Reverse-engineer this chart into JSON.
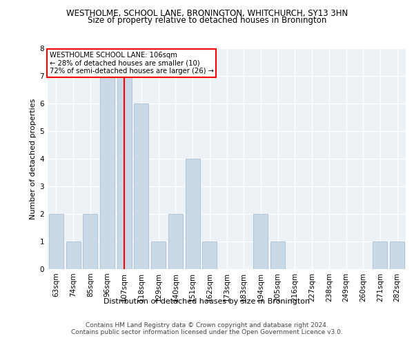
{
  "title1": "WESTHOLME, SCHOOL LANE, BRONINGTON, WHITCHURCH, SY13 3HN",
  "title2": "Size of property relative to detached houses in Bronington",
  "xlabel": "Distribution of detached houses by size in Bronington",
  "ylabel": "Number of detached properties",
  "categories": [
    "63sqm",
    "74sqm",
    "85sqm",
    "96sqm",
    "107sqm",
    "118sqm",
    "129sqm",
    "140sqm",
    "151sqm",
    "162sqm",
    "173sqm",
    "183sqm",
    "194sqm",
    "205sqm",
    "216sqm",
    "227sqm",
    "238sqm",
    "249sqm",
    "260sqm",
    "271sqm",
    "282sqm"
  ],
  "values": [
    2,
    1,
    2,
    7,
    7,
    6,
    1,
    2,
    4,
    1,
    0,
    0,
    2,
    1,
    0,
    0,
    0,
    0,
    0,
    1,
    1
  ],
  "bar_color": "#c9d9e8",
  "bar_edge_color": "#a8bfd0",
  "annotation_line1": "WESTHOLME SCHOOL LANE: 106sqm",
  "annotation_line2": "← 28% of detached houses are smaller (10)",
  "annotation_line3": "72% of semi-detached houses are larger (26) →",
  "annotation_box_color": "white",
  "annotation_box_edge_color": "red",
  "vline_color": "red",
  "vline_x_index": 4,
  "ylim": [
    0,
    8
  ],
  "yticks": [
    0,
    1,
    2,
    3,
    4,
    5,
    6,
    7,
    8
  ],
  "footer1": "Contains HM Land Registry data © Crown copyright and database right 2024.",
  "footer2": "Contains public sector information licensed under the Open Government Licence v3.0.",
  "bg_color": "#edf2f7",
  "grid_color": "white",
  "title1_fontsize": 8.5,
  "title2_fontsize": 8.5,
  "ylabel_fontsize": 8,
  "xlabel_fontsize": 8,
  "tick_fontsize": 7.5,
  "footer_fontsize": 6.5
}
